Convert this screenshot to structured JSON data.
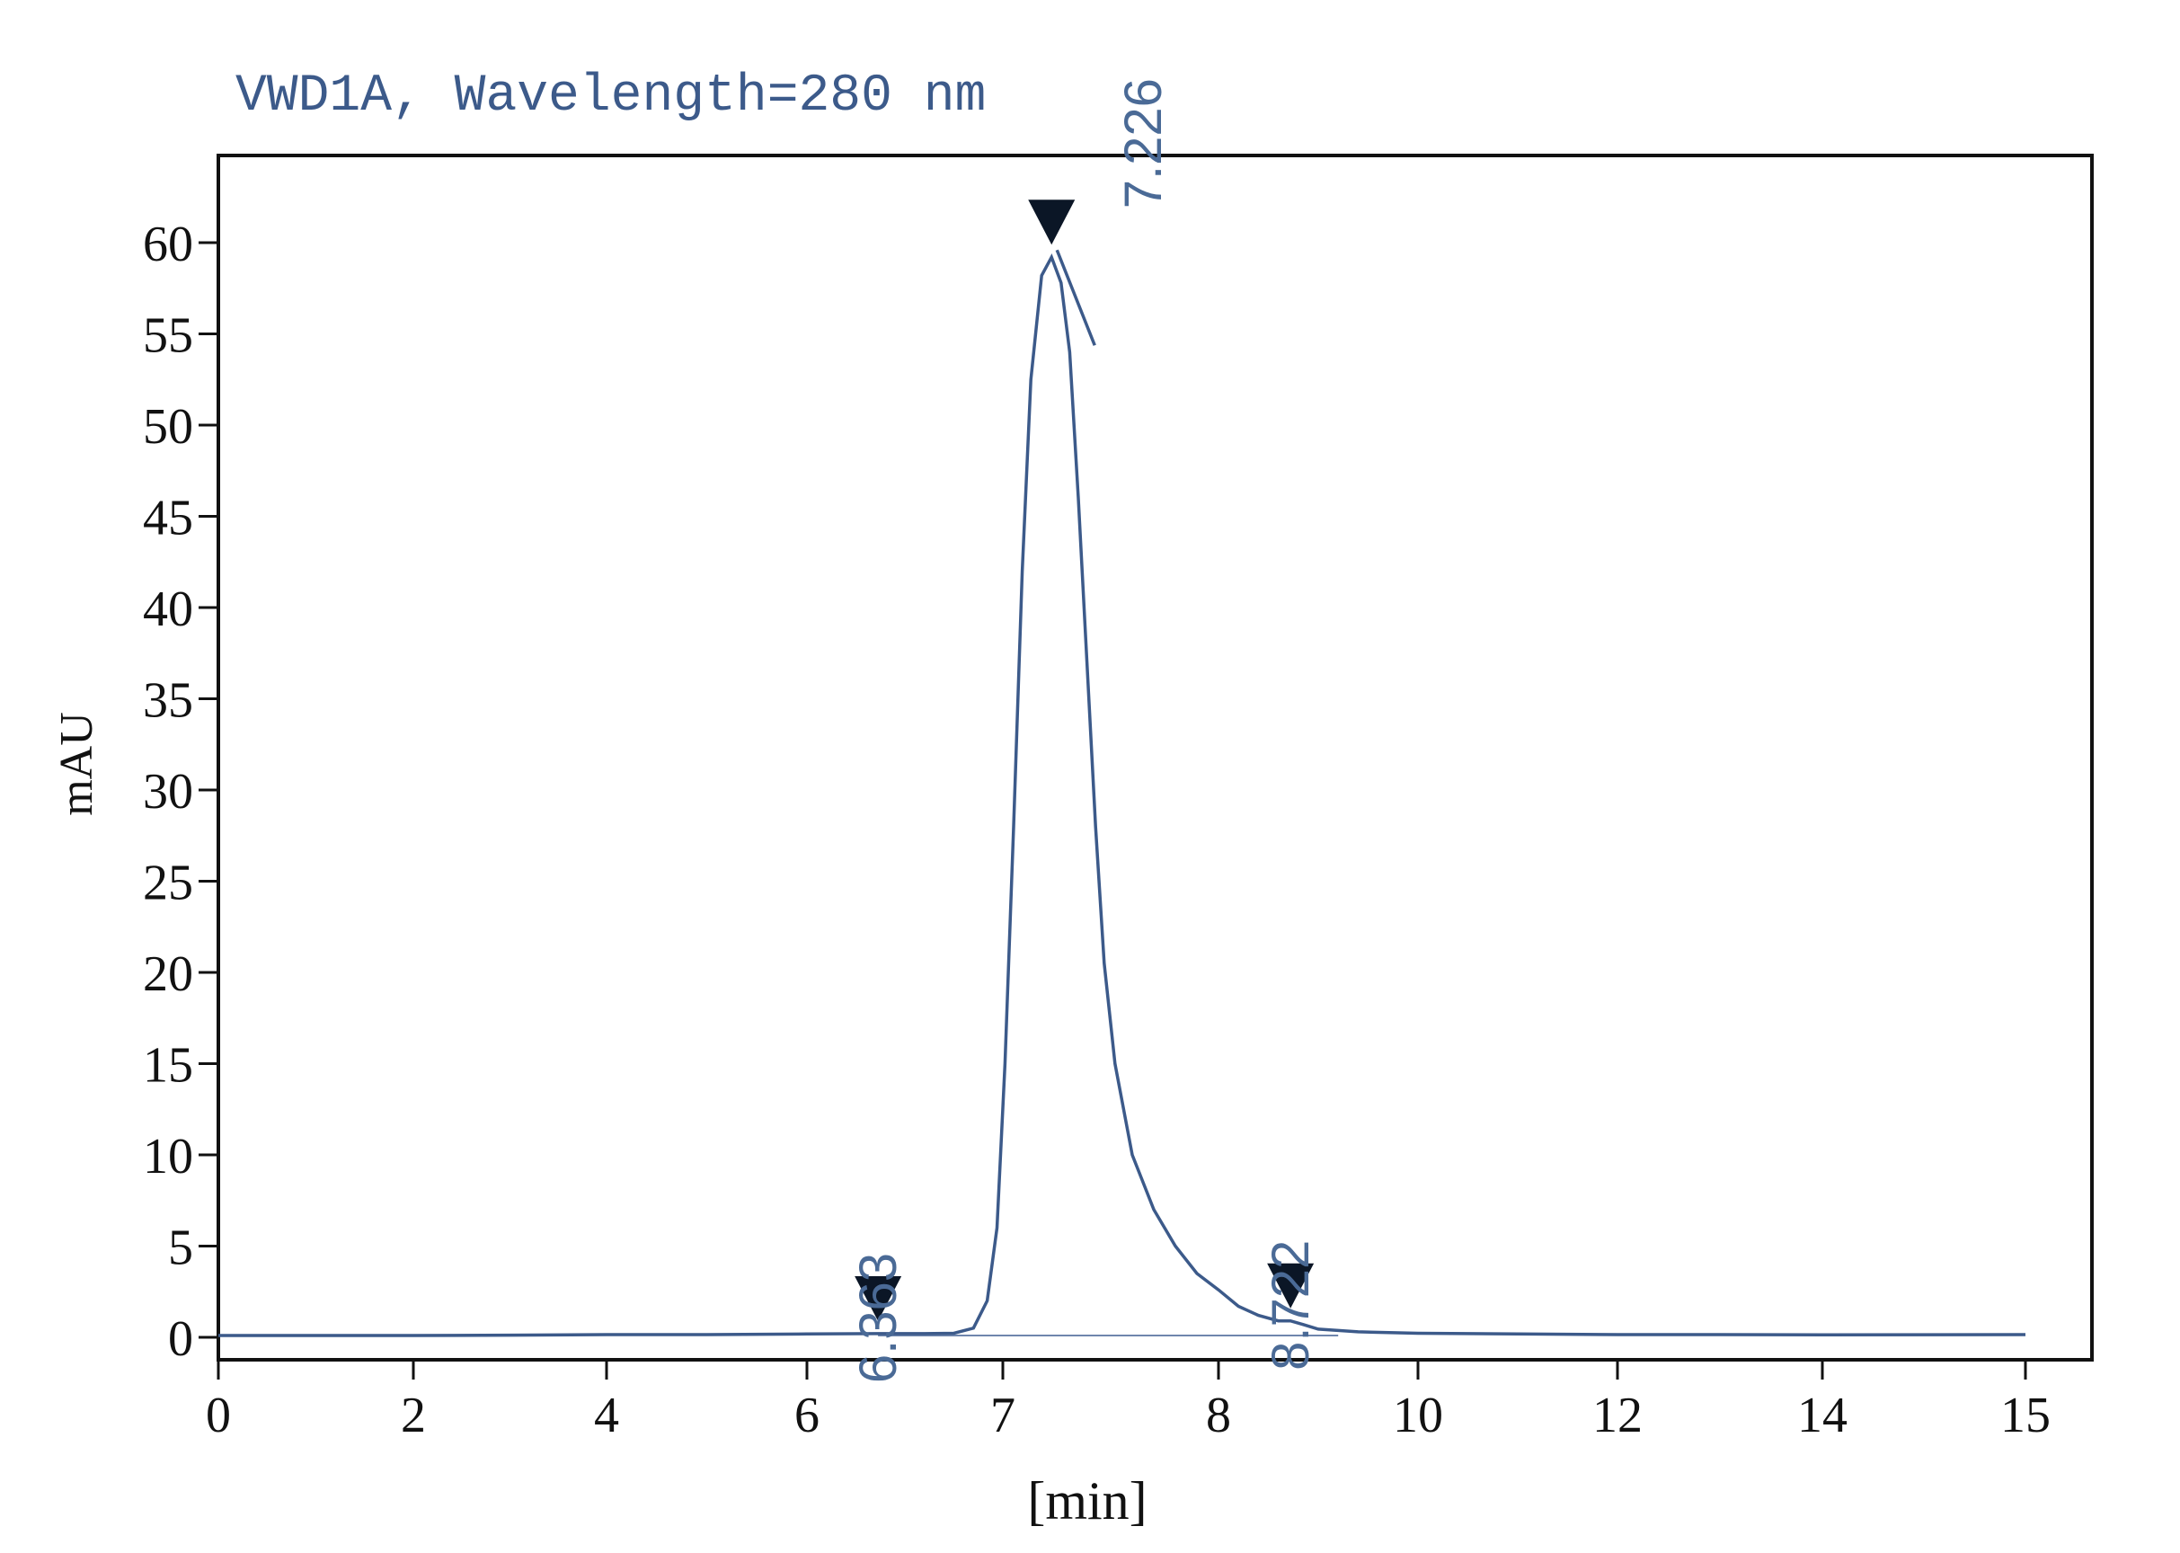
{
  "chart_data": {
    "type": "line",
    "title": "VWD1A, Wavelength=280 nm",
    "xlabel": "[min]",
    "ylabel": "mAU",
    "x_ticks": [
      "0",
      "2",
      "4",
      "6",
      "7",
      "8",
      "10",
      "12",
      "14",
      "15"
    ],
    "y_ticks": [
      "0",
      "5",
      "10",
      "15",
      "20",
      "25",
      "30",
      "35",
      "40",
      "45",
      "50",
      "55",
      "60"
    ],
    "ylim": [
      -1.2,
      64.8
    ],
    "grid": false,
    "series": [
      {
        "points": [
          [
            0.0,
            0.1
          ],
          [
            1.0,
            0.1
          ],
          [
            2.0,
            0.1
          ],
          [
            3.0,
            0.12
          ],
          [
            4.0,
            0.15
          ],
          [
            5.0,
            0.15
          ],
          [
            6.0,
            0.18
          ],
          [
            6.363,
            0.2
          ],
          [
            6.6,
            0.2
          ],
          [
            6.75,
            0.22
          ],
          [
            6.85,
            0.5
          ],
          [
            6.92,
            2.0
          ],
          [
            6.97,
            6.0
          ],
          [
            7.01,
            15.0
          ],
          [
            7.05,
            28.0
          ],
          [
            7.09,
            42.0
          ],
          [
            7.13,
            52.5
          ],
          [
            7.18,
            58.2
          ],
          [
            7.226,
            59.2
          ],
          [
            7.27,
            57.8
          ],
          [
            7.31,
            54.0
          ],
          [
            7.35,
            46.0
          ],
          [
            7.39,
            37.0
          ],
          [
            7.43,
            28.0
          ],
          [
            7.47,
            20.5
          ],
          [
            7.52,
            15.0
          ],
          [
            7.6,
            10.0
          ],
          [
            7.7,
            7.0
          ],
          [
            7.8,
            5.0
          ],
          [
            7.9,
            3.5
          ],
          [
            8.0,
            2.6
          ],
          [
            8.2,
            1.7
          ],
          [
            8.4,
            1.2
          ],
          [
            8.6,
            0.9
          ],
          [
            8.722,
            0.9
          ],
          [
            8.85,
            0.7
          ],
          [
            9.0,
            0.45
          ],
          [
            9.4,
            0.3
          ],
          [
            10.0,
            0.22
          ],
          [
            11.0,
            0.18
          ],
          [
            12.0,
            0.15
          ],
          [
            13.0,
            0.15
          ],
          [
            14.0,
            0.14
          ],
          [
            15.0,
            0.15
          ]
        ]
      }
    ],
    "baseline": [
      [
        6.363,
        0.1
      ],
      [
        8.722,
        0.1
      ],
      [
        9.2,
        0.1
      ]
    ],
    "peaks": [
      {
        "label": "6.363",
        "x": 6.363,
        "y": 0.2
      },
      {
        "label": "7.226",
        "x": 7.226,
        "y": 59.2
      },
      {
        "label": "8.722",
        "x": 8.722,
        "y": 0.9
      }
    ],
    "colors": {
      "trace": "#3c5a8a",
      "title": "#3c5a8a",
      "peak_label": "#4a6a96",
      "marker": "#0b1626",
      "axis": "#111111"
    }
  }
}
